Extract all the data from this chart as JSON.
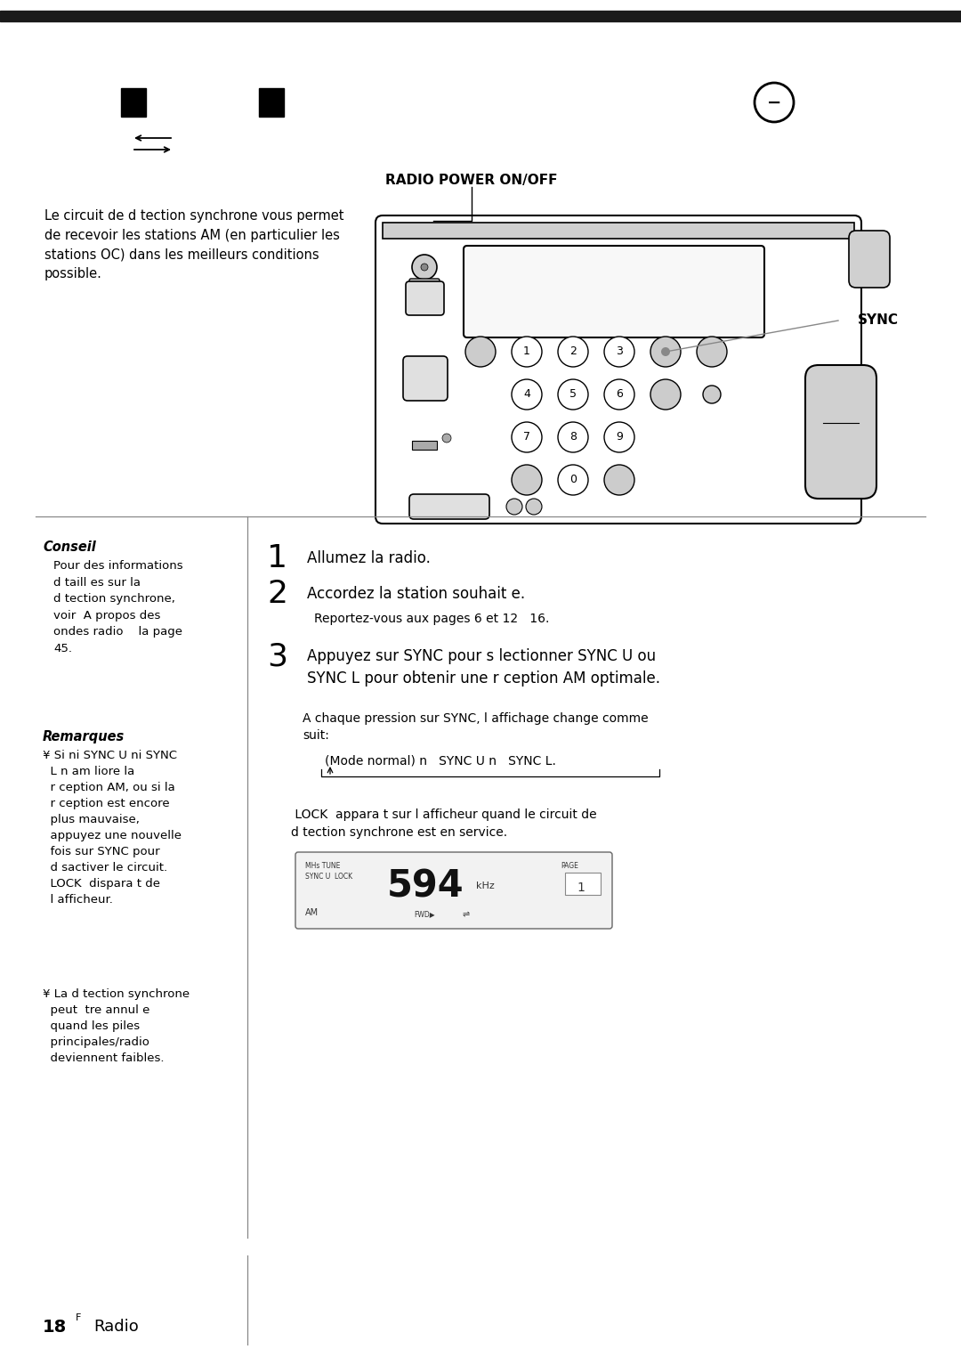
{
  "bg_color": "#ffffff",
  "top_bar_color": "#1a1a1a",
  "page_num": "18",
  "page_sup": "F",
  "page_label": "Radio",
  "radio_power_label": "RADIO POWER ON/OFF",
  "intro_text": "Le circuit de d tection synchrone vous permet\nde recevoir les stations AM (en particulier les\nstations OC) dans les meilleurs conditions\npossible.",
  "sync_label": "SYNC",
  "conseil_title": "Conseil",
  "conseil_text": "Pour des informations\nd taill es sur la\nd tection synchrone,\nvoir  A propos des\nondes radio    la page\n45.",
  "remarques_title": "Remarques",
  "remarques_text1": "¥ Si ni SYNC U ni SYNC\n  L n am liore la\n  r ception AM, ou si la\n  r ception est encore\n  plus mauvaise,\n  appuyez une nouvelle\n  fois sur SYNC pour\n  d sactiver le circuit.\n  LOCK  dispara t de\n  l afficheur.",
  "remarques_text2": "¥ La d tection synchrone\n  peut  tre annul e\n  quand les piles\n  principales/radio\n  deviennent faibles.",
  "step1_num": "1",
  "step1_text": "Allumez la radio.",
  "step2_num": "2",
  "step2_text": "Accordez la station souhait e.",
  "step2_sub": "Reportez-vous aux pages 6 et 12   16.",
  "step3_num": "3",
  "step3_text": "Appuyez sur SYNC pour s lectionner SYNC U ou\nSYNC L pour obtenir une r ception AM optimale.",
  "note1_text": "A chaque pression sur SYNC, l affichage change comme\nsuit:",
  "mode_text": "(Mode normal) n   SYNC U n   SYNC L.",
  "lock_text": " LOCK  appara t sur l afficheur quand le circuit de\nd tection synchrone est en service."
}
